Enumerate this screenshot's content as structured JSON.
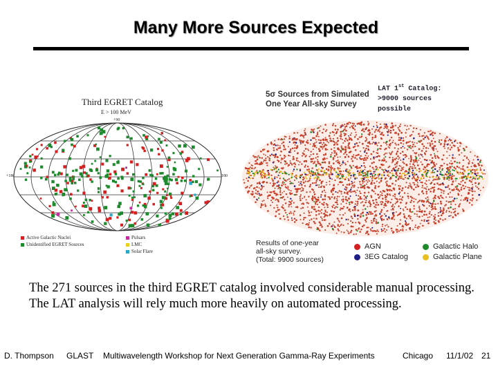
{
  "title": "Many More Sources Expected",
  "egret_map": {
    "title": "Third EGRET Catalog",
    "energy": "E > 100 MeV",
    "lat_top": "+90",
    "lat_bottom": "-90",
    "lon_left": "+180",
    "lon_right": "-180",
    "legend": [
      {
        "label": "Active Galactic Nuclei",
        "color": "#d42020"
      },
      {
        "label": "Unidentified EGRET Sources",
        "color": "#1e8a2e"
      },
      {
        "label": "Pulsars",
        "color": "#c82aa0"
      },
      {
        "label": "LMC",
        "color": "#e8d020"
      },
      {
        "label": "Solar Flare",
        "color": "#2aa8c8"
      }
    ]
  },
  "lat_map": {
    "title_line1": "5σ Sources from Simulated",
    "title_line2": "One Year All-sky Survey",
    "note_line1": "LAT 1",
    "note_sup": "st",
    "note_line1_end": " Catalog:",
    "note_line2": ">9000 sources",
    "note_line3": "possible",
    "results_line1": "Results of one-year",
    "results_line2": "all-sky survey.",
    "results_line3": "(Total: 9900 sources)",
    "legend": [
      {
        "label": "AGN",
        "color": "#d42020"
      },
      {
        "label": "3EG Catalog",
        "color": "#1f1f8a"
      },
      {
        "label": "Galactic Halo",
        "color": "#1e8a2e"
      },
      {
        "label": "Galactic Plane",
        "color": "#e8c020"
      }
    ]
  },
  "body_text": "The 271 sources in the third EGRET catalog involved considerable manual processing.  The LAT analysis will rely much more heavily on automated processing.",
  "footer": {
    "author": "D. Thompson",
    "project": "GLAST",
    "workshop": "Multiwavelength Workshop for Next Generation Gamma-Ray Experiments",
    "location": "Chicago",
    "date": "11/1/02",
    "page": "21"
  }
}
